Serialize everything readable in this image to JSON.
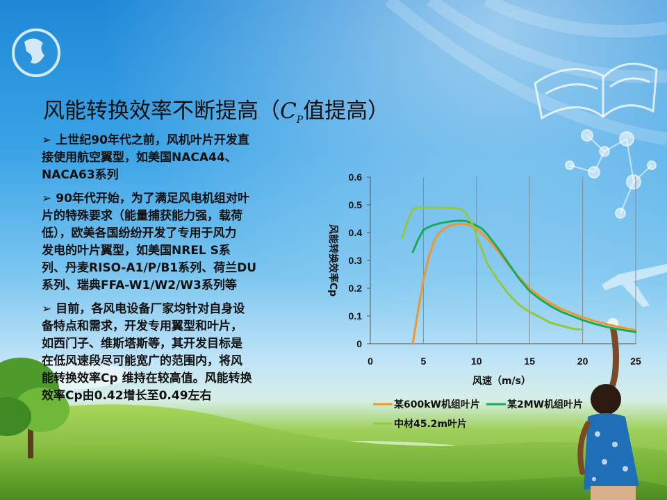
{
  "slide": {
    "title_main": "风能转换效率不断提高（",
    "title_c": "C",
    "title_sub": "P",
    "title_end": "值提高）"
  },
  "body": {
    "bullet_icon": "arrow-bullet-icon",
    "p1": [
      "上世纪90年代之前，风机叶片开发直",
      "接使用航空翼型，如美国NACA44、",
      "NACA63系列"
    ],
    "p2": [
      "90年代开始，为了满足风电机组对叶",
      "片的特殊要求（能量捕获能力强，载荷",
      "低），欧美各国纷纷开发了专用于风力",
      "发电的叶片翼型，如美国NREL  S系",
      "列、丹麦RISO-A1/P/B1系列、荷兰DU",
      "系列、瑞典FFA-W1/W2/W3系列等"
    ],
    "p3": [
      "目前，各风电设备厂家均针对自身设",
      "备特点和需求，开发专用翼型和叶片，",
      "如西门子、维斯塔斯等，其开发目标是",
      "在低风速段尽可能宽广的范围内，将风",
      "能转换效率Cp 维持在较高值。风能转换",
      "效率Cp由0.42增长至0.49左右"
    ]
  },
  "chart_data": {
    "type": "line",
    "xlabel": "风速（m/s）",
    "ylabel": "风能转换效率Cp",
    "xlim": [
      0,
      25
    ],
    "ylim": [
      0,
      0.6
    ],
    "xticks": [
      "0",
      "5",
      "10",
      "15",
      "20",
      "25"
    ],
    "yticks": [
      "0",
      "0.1",
      "0.2",
      "0.3",
      "0.4",
      "0.5",
      "0.6"
    ],
    "grid": "vertical lines at x ticks",
    "legend_position": "bottom",
    "series": [
      {
        "name": "某600kW机组叶片",
        "color": "#f0962a",
        "x": [
          4,
          4.5,
          5,
          5.5,
          6,
          6.5,
          7,
          7.5,
          8,
          8.5,
          9,
          9.5,
          10,
          11,
          12,
          13,
          14,
          15,
          16,
          17,
          18,
          19,
          20,
          21,
          22,
          23,
          24,
          25
        ],
        "y": [
          0,
          0.12,
          0.23,
          0.31,
          0.37,
          0.4,
          0.415,
          0.425,
          0.43,
          0.432,
          0.43,
          0.425,
          0.415,
          0.38,
          0.335,
          0.285,
          0.24,
          0.2,
          0.17,
          0.145,
          0.125,
          0.11,
          0.095,
          0.083,
          0.073,
          0.064,
          0.056,
          0.048
        ]
      },
      {
        "name": "某2MW机组叶片",
        "color": "#1aaa55",
        "x": [
          4,
          4.5,
          5,
          5.5,
          6,
          6.5,
          7,
          7.5,
          8,
          8.5,
          9,
          9.5,
          10,
          10.5,
          11,
          12,
          13,
          14,
          15,
          16,
          17,
          18,
          19,
          20,
          21,
          22,
          23,
          24,
          25
        ],
        "y": [
          0.33,
          0.375,
          0.41,
          0.42,
          0.428,
          0.433,
          0.437,
          0.44,
          0.442,
          0.443,
          0.442,
          0.435,
          0.425,
          0.415,
          0.395,
          0.345,
          0.29,
          0.235,
          0.19,
          0.16,
          0.135,
          0.115,
          0.1,
          0.085,
          0.073,
          0.063,
          0.055,
          0.048,
          0.042
        ]
      },
      {
        "name": "中材45.2m叶片",
        "color": "#92c83e",
        "x": [
          3,
          3.5,
          4,
          4.5,
          5,
          6,
          7,
          8,
          8.5,
          9,
          9.5,
          10,
          10.5,
          11,
          12,
          13,
          14,
          15,
          16,
          17,
          18,
          19,
          19.5,
          20
        ],
        "y": [
          0.38,
          0.44,
          0.485,
          0.49,
          0.49,
          0.49,
          0.49,
          0.488,
          0.485,
          0.47,
          0.44,
          0.39,
          0.34,
          0.29,
          0.23,
          0.18,
          0.14,
          0.115,
          0.095,
          0.075,
          0.065,
          0.055,
          0.052,
          0.052
        ]
      }
    ]
  }
}
